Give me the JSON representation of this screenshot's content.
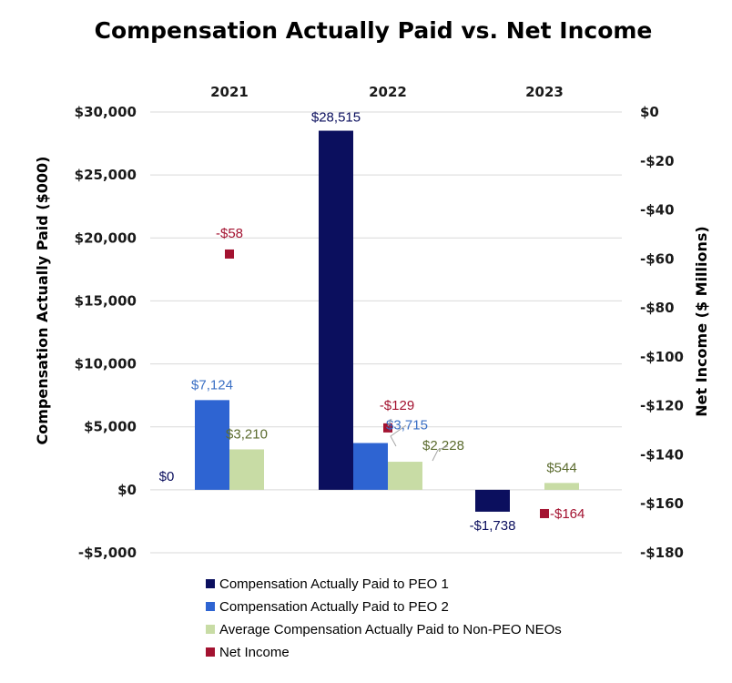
{
  "chart_data": {
    "type": "bar",
    "title": "Compensation Actually Paid vs. Net Income",
    "categories": [
      "2021",
      "2022",
      "2023"
    ],
    "y_left": {
      "label": "Compensation Actually Paid ($000)",
      "range": [
        -5000,
        30000
      ],
      "ticks": [
        "$30,000",
        "$25,000",
        "$20,000",
        "$15,000",
        "$10,000",
        "$5,000",
        "$0",
        "-$5,000"
      ],
      "tick_values": [
        30000,
        25000,
        20000,
        15000,
        10000,
        5000,
        0,
        -5000
      ]
    },
    "y_right": {
      "label": "Net Income ($ Millions)",
      "range": [
        -180,
        0
      ],
      "ticks": [
        "$0",
        "-$20",
        "-$40",
        "-$60",
        "-$80",
        "-$100",
        "-$120",
        "-$140",
        "-$160",
        "-$180"
      ],
      "tick_values": [
        0,
        -20,
        -40,
        -60,
        -80,
        -100,
        -120,
        -140,
        -160,
        -180
      ]
    },
    "grid": true,
    "legend_position": "bottom",
    "series": [
      {
        "name": "Compensation Actually Paid to PEO 1",
        "kind": "bar",
        "axis": "left",
        "color": "#0b0f5e",
        "values": [
          0,
          28515,
          -1738
        ],
        "labels": [
          "$0",
          "$28,515",
          "-$1,738"
        ],
        "label_color": "#0b0f5e"
      },
      {
        "name": "Compensation Actually Paid to PEO 2",
        "kind": "bar",
        "axis": "left",
        "color": "#2e64d2",
        "values": [
          7124,
          3715,
          null
        ],
        "labels": [
          "$7,124",
          "$3,715",
          ""
        ],
        "label_color": "#3a6fc4"
      },
      {
        "name": "Average Compensation Actually Paid to Non-PEO NEOs",
        "kind": "bar",
        "axis": "left",
        "color": "#c8dca5",
        "values": [
          3210,
          2228,
          544
        ],
        "labels": [
          "$3,210",
          "$2,228",
          "$544"
        ],
        "label_color": "#5b6b2e"
      },
      {
        "name": "Net Income",
        "kind": "marker",
        "axis": "right",
        "color": "#a31230",
        "values": [
          -58,
          -129,
          -164
        ],
        "labels": [
          "-$58",
          "-$129",
          "-$164"
        ],
        "label_color": "#a31230"
      }
    ]
  }
}
